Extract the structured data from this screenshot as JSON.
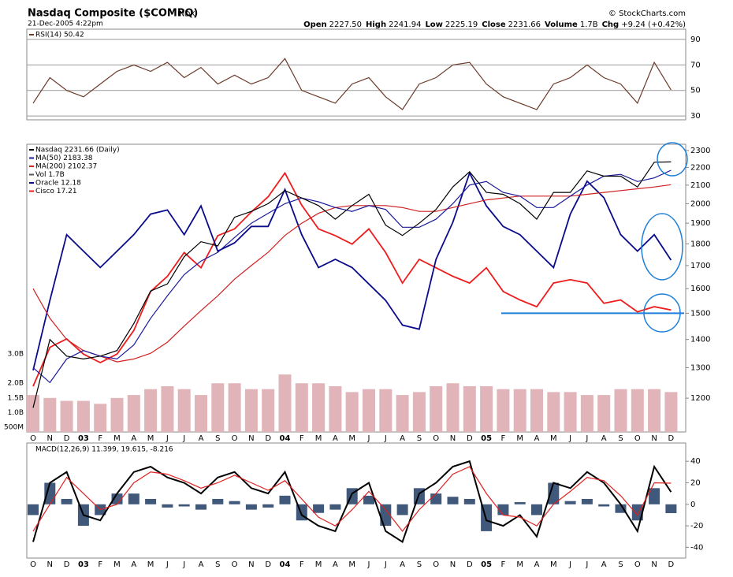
{
  "header": {
    "title": "Nasdaq Composite ($COMPQ)",
    "exchange": "INDX",
    "date": "21-Dec-2005 4:22pm",
    "source": "© StockCharts.com",
    "quote": [
      {
        "label": "Open",
        "value": "2227.50"
      },
      {
        "label": "High",
        "value": "2241.94"
      },
      {
        "label": "Low",
        "value": "2225.19"
      },
      {
        "label": "Close",
        "value": "2231.66"
      },
      {
        "label": "Volume",
        "value": "1.7B"
      },
      {
        "label": "Chg",
        "value": "+9.24 (+0.42%)"
      }
    ]
  },
  "chart_data": [
    {
      "type": "line",
      "ylim": [
        27,
        98
      ],
      "yticks": [
        30,
        50,
        70,
        90
      ],
      "grid": true,
      "series": [
        {
          "name": "RSI(14) 50.42",
          "color": "#6b3a2a",
          "values": [
            40,
            60,
            50,
            45,
            55,
            65,
            70,
            65,
            72,
            60,
            68,
            55,
            62,
            55,
            60,
            75,
            50,
            45,
            40,
            55,
            60,
            45,
            35,
            55,
            60,
            70,
            72,
            55,
            45,
            40,
            35,
            55,
            60,
            70,
            60,
            55,
            40,
            72,
            50.42
          ]
        }
      ]
    },
    {
      "type": "line",
      "log": true,
      "ylim": [
        1098,
        2338
      ],
      "yticks": [
        1200,
        1300,
        1400,
        1500,
        1600,
        1700,
        1800,
        1900,
        2000,
        2100,
        2200,
        2300
      ],
      "categories": [
        "O",
        "N",
        "D",
        "03",
        "F",
        "M",
        "A",
        "M",
        "J",
        "J",
        "A",
        "S",
        "O",
        "N",
        "D",
        "04",
        "F",
        "M",
        "A",
        "M",
        "J",
        "J",
        "A",
        "S",
        "O",
        "N",
        "D",
        "05",
        "F",
        "M",
        "A",
        "M",
        "J",
        "J",
        "A",
        "S",
        "O",
        "N",
        "D"
      ],
      "y2lim": [
        8,
        15
      ],
      "y3lim": [
        10,
        27
      ],
      "series": [
        {
          "name": "Nasdaq 2231.66 (Daily)",
          "color": "#000000",
          "values": [
            1170,
            1400,
            1340,
            1330,
            1340,
            1360,
            1460,
            1590,
            1620,
            1740,
            1810,
            1790,
            1930,
            1960,
            2000,
            2070,
            2030,
            1990,
            1920,
            1990,
            2050,
            1890,
            1840,
            1900,
            1970,
            2090,
            2175,
            2060,
            2050,
            2000,
            1920,
            2060,
            2060,
            2180,
            2150,
            2150,
            2090,
            2230,
            2232
          ]
        },
        {
          "name": "MA(50) 2183.38",
          "color": "#1a1a9c",
          "values": [
            1300,
            1250,
            1330,
            1360,
            1340,
            1330,
            1380,
            1480,
            1570,
            1660,
            1720,
            1760,
            1830,
            1900,
            1950,
            2000,
            2030,
            2010,
            1980,
            1960,
            1990,
            1970,
            1880,
            1880,
            1920,
            2000,
            2100,
            2120,
            2060,
            2040,
            1980,
            1980,
            2040,
            2100,
            2150,
            2160,
            2120,
            2140,
            2183.38
          ]
        },
        {
          "name": "MA(200) 2102.37",
          "color": "#d02020",
          "values": [
            1600,
            1480,
            1400,
            1360,
            1340,
            1320,
            1330,
            1350,
            1390,
            1450,
            1510,
            1570,
            1640,
            1700,
            1760,
            1840,
            1900,
            1950,
            1980,
            1990,
            1990,
            1990,
            1980,
            1960,
            1960,
            1980,
            2000,
            2020,
            2030,
            2040,
            2040,
            2040,
            2040,
            2050,
            2060,
            2070,
            2080,
            2090,
            2102.37
          ]
        },
        {
          "name": "Oracle 12.18",
          "color": "#0a0a8c",
          "axis": "y2",
          "values": [
            9.5,
            11.2,
            12.8,
            12.4,
            12.0,
            12.4,
            12.8,
            13.3,
            13.4,
            12.8,
            13.5,
            12.4,
            12.6,
            13.0,
            13.0,
            13.9,
            12.8,
            12.0,
            12.2,
            12.0,
            11.6,
            11.2,
            10.6,
            10.5,
            12.2,
            13.1,
            14.3,
            13.5,
            13.0,
            12.8,
            12.4,
            12.0,
            13.3,
            14.1,
            13.7,
            12.8,
            12.4,
            12.8,
            12.18
          ]
        },
        {
          "name": "Cisco 17.21",
          "color": "#ee1c1c",
          "axis": "y3",
          "values": [
            12.7,
            15.0,
            15.5,
            14.6,
            14.1,
            14.6,
            16.0,
            18.3,
            19.2,
            20.6,
            19.7,
            21.6,
            22.0,
            23.0,
            23.9,
            25.3,
            23.4,
            22.0,
            21.6,
            21.1,
            22.0,
            20.6,
            18.8,
            20.2,
            19.7,
            19.2,
            18.8,
            19.7,
            18.3,
            17.8,
            17.4,
            18.8,
            19.0,
            18.8,
            17.6,
            17.8,
            17.1,
            17.4,
            17.21
          ]
        }
      ],
      "volume": {
        "name": "Vol 1.7B",
        "color": "#e0b4b8",
        "ylim": [
          0.34,
          10.15
        ],
        "yticks": [
          {
            "value": 0.5,
            "label": "500M"
          },
          {
            "value": 1,
            "label": "1.0B"
          },
          {
            "value": 1.5,
            "label": "1.5B"
          },
          {
            "value": 2,
            "label": "2.0B"
          },
          {
            "value": 3,
            "label": "3.0B"
          }
        ],
        "values": [
          1.6,
          1.5,
          1.4,
          1.4,
          1.3,
          1.5,
          1.6,
          1.8,
          1.9,
          1.8,
          1.6,
          2.0,
          2.0,
          1.8,
          1.8,
          2.3,
          2.0,
          2.0,
          1.9,
          1.7,
          1.8,
          1.8,
          1.6,
          1.7,
          1.9,
          2.0,
          1.9,
          1.9,
          1.8,
          1.8,
          1.8,
          1.7,
          1.7,
          1.6,
          1.6,
          1.8,
          1.8,
          1.8,
          1.7
        ]
      },
      "support_line": {
        "value": 1500,
        "color": "#1e7fd8"
      }
    },
    {
      "type": "macd",
      "ylim": [
        -50,
        57
      ],
      "yticks": [
        -40,
        -20,
        0,
        20,
        40
      ],
      "categories": [
        "O",
        "N",
        "D",
        "03",
        "F",
        "M",
        "A",
        "M",
        "J",
        "J",
        "A",
        "S",
        "O",
        "N",
        "D",
        "04",
        "F",
        "M",
        "A",
        "M",
        "J",
        "J",
        "A",
        "S",
        "O",
        "N",
        "D",
        "05",
        "F",
        "M",
        "A",
        "M",
        "J",
        "J",
        "A",
        "S",
        "O",
        "N",
        "D"
      ],
      "legend": "MACD(12,26,9) 11.399, 19.615, -8.216",
      "series": [
        {
          "color": "#000000",
          "values": [
            -35,
            20,
            30,
            -10,
            -15,
            10,
            30,
            35,
            25,
            20,
            10,
            25,
            30,
            15,
            10,
            30,
            -10,
            -20,
            -25,
            10,
            20,
            -25,
            -35,
            10,
            20,
            35,
            40,
            -15,
            -20,
            -10,
            -30,
            20,
            15,
            30,
            20,
            0,
            -25,
            35,
            11.399
          ]
        },
        {
          "color": "#e02020",
          "values": [
            -25,
            0,
            25,
            10,
            -5,
            0,
            20,
            30,
            28,
            22,
            15,
            20,
            27,
            20,
            13,
            22,
            5,
            -12,
            -20,
            -5,
            12,
            -5,
            -25,
            -5,
            10,
            28,
            35,
            10,
            -10,
            -12,
            -20,
            0,
            12,
            25,
            22,
            8,
            -10,
            20,
            19.615
          ]
        }
      ],
      "histogram": {
        "color": "#40587a",
        "values": [
          -10,
          20,
          5,
          -20,
          -10,
          10,
          10,
          5,
          -3,
          -2,
          -5,
          5,
          3,
          -5,
          -3,
          8,
          -15,
          -8,
          -5,
          15,
          8,
          -20,
          -10,
          15,
          10,
          7,
          5,
          -25,
          -10,
          2,
          -10,
          20,
          3,
          5,
          -2,
          -8,
          -15,
          15,
          -8.216
        ]
      }
    }
  ]
}
